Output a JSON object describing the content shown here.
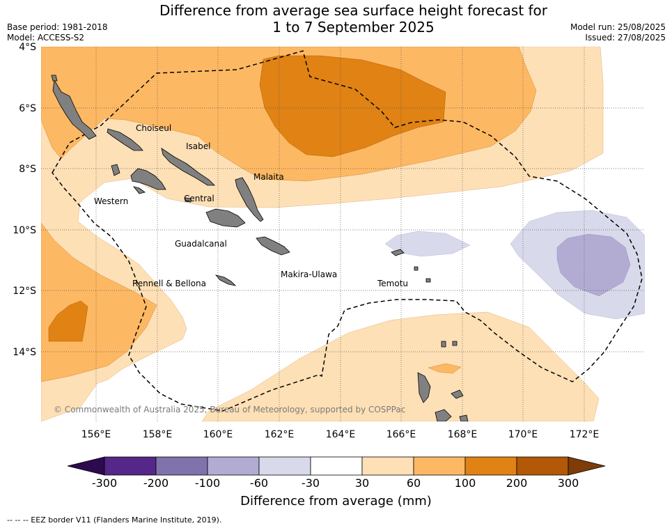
{
  "title": {
    "line1": "Difference from average sea surface height forecast for",
    "line2": "1 to 7 September 2025"
  },
  "meta_left": {
    "base_period": "Base period: 1981-2018",
    "model": "Model: ACCESS-S2"
  },
  "meta_right": {
    "model_run": "Model run: 25/08/2025",
    "issued": "Issued: 27/08/2025"
  },
  "axes": {
    "lat_ticks": [
      "4°S",
      "6°S",
      "8°S",
      "10°S",
      "12°S",
      "14°S"
    ],
    "lon_ticks": [
      "156°E",
      "158°E",
      "160°E",
      "162°E",
      "164°E",
      "166°E",
      "168°E",
      "170°E",
      "172°E"
    ]
  },
  "map_labels": {
    "choiseul": "Choiseul",
    "isabel": "Isabel",
    "malaita": "Malaita",
    "western": "Western",
    "central": "Central",
    "guadalcanal": "Guadalcanal",
    "makira": "Makira-Ulawa",
    "rennell": "Rennell & Bellona",
    "temotu": "Temotu"
  },
  "copyright": "© Commonwealth of Australia 2025, Bureau of Meteorology, supported by COSPPac",
  "colorbar": {
    "title": "Difference from average (mm)",
    "labels": [
      "-300",
      "-200",
      "-100",
      "-60",
      "-30",
      "30",
      "60",
      "100",
      "200",
      "300"
    ],
    "colors": {
      "under": "#2d0a4e",
      "c1": "#542788",
      "c2": "#8073ac",
      "c3": "#b2abd2",
      "c4": "#d8daeb",
      "c5": "#ffffff",
      "c6": "#fee0b6",
      "c7": "#fdb863",
      "c8": "#e08214",
      "c9": "#b35806",
      "over": "#7f3b08"
    }
  },
  "footer": "--  --  -- EEZ border V11 (Flanders Marine Institute, 2019)."
}
